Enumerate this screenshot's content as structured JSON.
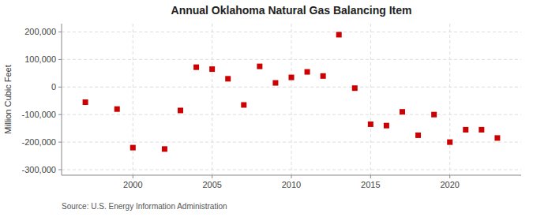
{
  "chart_data": {
    "type": "scatter",
    "title": "Annual Oklahoma Natural Gas Balancing Item",
    "ylabel": "Million Cubic Feet",
    "annotation": "Source: U.S. Energy Information Administration",
    "x": [
      1997,
      1999,
      2000,
      2002,
      2003,
      2004,
      2005,
      2006,
      2007,
      2008,
      2009,
      2010,
      2011,
      2012,
      2013,
      2014,
      2015,
      2016,
      2017,
      2018,
      2019,
      2020,
      2021,
      2022,
      2023
    ],
    "values": [
      -55000,
      -80000,
      -220000,
      -225000,
      -85000,
      72000,
      65000,
      30000,
      -65000,
      75000,
      15000,
      35000,
      55000,
      40000,
      190000,
      -4000,
      -135000,
      -140000,
      -90000,
      -175000,
      -100000,
      -200000,
      -155000,
      -155000,
      -185000
    ],
    "color": "#cc0000",
    "marker": "square",
    "xlim": [
      1995.5,
      2024.5
    ],
    "ylim": [
      -320000,
      230000
    ],
    "xticks": [
      2000,
      2005,
      2010,
      2015,
      2020
    ],
    "yticks": [
      {
        "value": -300000,
        "label": "-300,000"
      },
      {
        "value": -200000,
        "label": "-200,000"
      },
      {
        "value": -100000,
        "label": "-100,000"
      },
      0,
      {
        "value": 100000,
        "label": "100,000"
      },
      {
        "value": 200000,
        "label": "200,000"
      }
    ],
    "grid": true
  }
}
